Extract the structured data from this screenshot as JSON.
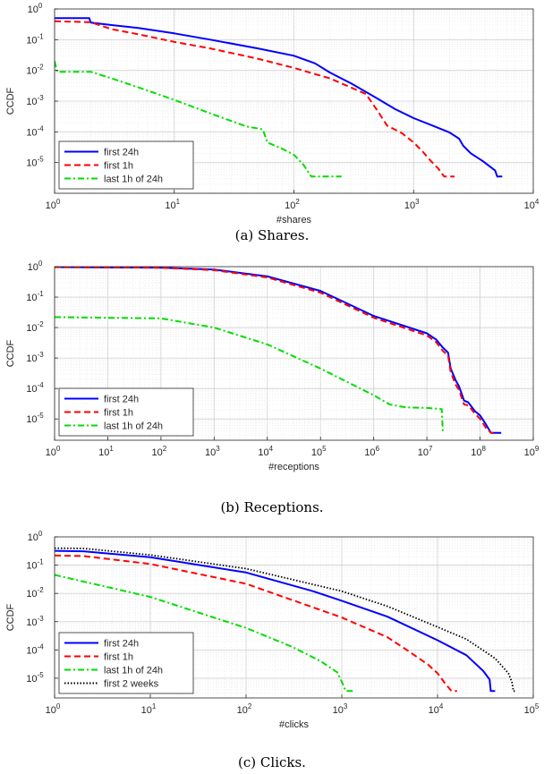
{
  "chart_data": [
    {
      "type": "line",
      "ylabel": "CCDF",
      "xlabel": "#shares",
      "xscale": "log",
      "yscale": "log",
      "xlim": [
        1,
        10000
      ],
      "ylim": [
        1e-06,
        1
      ],
      "xticks": [
        "10^0",
        "10^1",
        "10^2",
        "10^3",
        "10^4"
      ],
      "yticks": [
        "10^0",
        "10^-1",
        "10^-2",
        "10^-3",
        "10^-4",
        "10^-5"
      ],
      "grid": true,
      "legend_position": "bottom-left",
      "caption": "(a) Shares.",
      "series": [
        {
          "name": "first 24h",
          "color": "#0000ff",
          "dash": "solid",
          "points": [
            [
              1,
              0.5
            ],
            [
              1.95,
              0.5
            ],
            [
              2,
              0.36
            ],
            [
              3,
              0.3
            ],
            [
              5,
              0.24
            ],
            [
              10,
              0.16
            ],
            [
              20,
              0.1
            ],
            [
              50,
              0.052
            ],
            [
              100,
              0.03
            ],
            [
              150,
              0.017
            ],
            [
              200,
              0.0085
            ],
            [
              300,
              0.0038
            ],
            [
              500,
              0.0012
            ],
            [
              700,
              0.00055
            ],
            [
              1000,
              0.00028
            ],
            [
              1500,
              0.00015
            ],
            [
              2000,
              9.5e-05
            ],
            [
              2400,
              6e-05
            ],
            [
              2600,
              3.5e-05
            ],
            [
              3000,
              2e-05
            ],
            [
              3800,
              1.1e-05
            ],
            [
              4800,
              5.5e-06
            ],
            [
              5000,
              3.5e-06
            ],
            [
              5500,
              3.5e-06
            ]
          ]
        },
        {
          "name": "first 1h",
          "color": "#ff0000",
          "dash": "dashed",
          "points": [
            [
              1,
              0.4
            ],
            [
              2,
              0.37
            ],
            [
              3,
              0.22
            ],
            [
              5,
              0.15
            ],
            [
              10,
              0.085
            ],
            [
              20,
              0.052
            ],
            [
              50,
              0.024
            ],
            [
              100,
              0.012
            ],
            [
              200,
              0.0055
            ],
            [
              400,
              0.0017
            ],
            [
              500,
              0.00048
            ],
            [
              600,
              0.00016
            ],
            [
              800,
              9e-05
            ],
            [
              1000,
              4.5e-05
            ],
            [
              1200,
              2.2e-05
            ],
            [
              1400,
              1.1e-05
            ],
            [
              1600,
              6.5e-06
            ],
            [
              1800,
              3.5e-06
            ],
            [
              2200,
              3.5e-06
            ]
          ]
        },
        {
          "name": "last 1h of 24h",
          "color": "#00dd00",
          "dash": "dashdot",
          "points": [
            [
              1,
              0.02
            ],
            [
              1.05,
              0.009
            ],
            [
              2,
              0.009
            ],
            [
              3,
              0.0055
            ],
            [
              5,
              0.0028
            ],
            [
              10,
              0.0011
            ],
            [
              20,
              0.0004
            ],
            [
              40,
              0.00015
            ],
            [
              55,
              0.00012
            ],
            [
              60,
              4.5e-05
            ],
            [
              80,
              2.8e-05
            ],
            [
              100,
              1.8e-05
            ],
            [
              120,
              8.5e-06
            ],
            [
              140,
              3.5e-06
            ],
            [
              250,
              3.5e-06
            ]
          ]
        }
      ]
    },
    {
      "type": "line",
      "ylabel": "CCDF",
      "xlabel": "#receptions",
      "xscale": "log",
      "yscale": "log",
      "xlim": [
        1,
        1000000000
      ],
      "ylim": [
        2e-06,
        1
      ],
      "xticks": [
        "10^0",
        "10^1",
        "10^2",
        "10^3",
        "10^4",
        "10^5",
        "10^6",
        "10^7",
        "10^8",
        "10^9"
      ],
      "yticks": [
        "10^0",
        "10^-1",
        "10^-2",
        "10^-3",
        "10^-4",
        "10^-5"
      ],
      "grid": true,
      "legend_position": "bottom-left",
      "caption": "(b) Receptions.",
      "series": [
        {
          "name": "first 24h",
          "color": "#0000ff",
          "dash": "solid",
          "points": [
            [
              1,
              0.97
            ],
            [
              100,
              0.93
            ],
            [
              1000,
              0.8
            ],
            [
              10000,
              0.48
            ],
            [
              100000,
              0.16
            ],
            [
              1000000,
              0.024
            ],
            [
              10000000,
              0.0065
            ],
            [
              15000000,
              0.004
            ],
            [
              20000000,
              0.0022
            ],
            [
              25000000,
              0.0015
            ],
            [
              28000000,
              0.00045
            ],
            [
              35000000,
              0.00018
            ],
            [
              40000000,
              0.00012
            ],
            [
              50000000,
              4e-05
            ],
            [
              60000000,
              3.5e-05
            ],
            [
              80000000,
              1.8e-05
            ],
            [
              100000000,
              1.3e-05
            ],
            [
              130000000,
              6.5e-06
            ],
            [
              160000000,
              3.5e-06
            ],
            [
              250000000,
              3.5e-06
            ]
          ]
        },
        {
          "name": "first 1h",
          "color": "#ff0000",
          "dash": "dashed",
          "points": [
            [
              1,
              0.97
            ],
            [
              100,
              0.92
            ],
            [
              1000,
              0.77
            ],
            [
              10000,
              0.44
            ],
            [
              100000,
              0.14
            ],
            [
              1000000,
              0.021
            ],
            [
              10000000,
              0.0055
            ],
            [
              15000000,
              0.0033
            ],
            [
              20000000,
              0.0017
            ],
            [
              25000000,
              0.0012
            ],
            [
              28000000,
              0.00035
            ],
            [
              35000000,
              0.00013
            ],
            [
              40000000,
              9e-05
            ],
            [
              50000000,
              3e-05
            ],
            [
              60000000,
              2.8e-05
            ],
            [
              80000000,
              1.5e-05
            ],
            [
              100000000,
              1e-05
            ],
            [
              130000000,
              5e-06
            ],
            [
              160000000,
              3.5e-06
            ],
            [
              180000000,
              3.5e-06
            ]
          ]
        },
        {
          "name": "last 1h of 24h",
          "color": "#00dd00",
          "dash": "dashdot",
          "points": [
            [
              1,
              0.022
            ],
            [
              100,
              0.02
            ],
            [
              1000,
              0.01
            ],
            [
              10000,
              0.0028
            ],
            [
              100000,
              0.00045
            ],
            [
              1000000,
              6e-05
            ],
            [
              2000000,
              3e-05
            ],
            [
              4000000,
              2.4e-05
            ],
            [
              10000000,
              2.3e-05
            ],
            [
              19000000,
              2.1e-05
            ],
            [
              20000000,
              3.5e-06
            ]
          ]
        }
      ]
    },
    {
      "type": "line",
      "ylabel": "CCDF",
      "xlabel": "#clicks",
      "xscale": "log",
      "yscale": "log",
      "xlim": [
        1,
        100000
      ],
      "ylim": [
        2e-06,
        1
      ],
      "xticks": [
        "10^0",
        "10^1",
        "10^2",
        "10^3",
        "10^4",
        "10^5"
      ],
      "yticks": [
        "10^0",
        "10^-1",
        "10^-2",
        "10^-3",
        "10^-4",
        "10^-5"
      ],
      "grid": true,
      "legend_position": "bottom-left",
      "caption": "(c) Clicks.",
      "series": [
        {
          "name": "first 24h",
          "color": "#0000ff",
          "dash": "solid",
          "points": [
            [
              1,
              0.32
            ],
            [
              2,
              0.31
            ],
            [
              10,
              0.19
            ],
            [
              100,
              0.055
            ],
            [
              500,
              0.012
            ],
            [
              1000,
              0.0055
            ],
            [
              3000,
              0.0015
            ],
            [
              10000,
              0.00022
            ],
            [
              20000,
              6.5e-05
            ],
            [
              30000,
              1.8e-05
            ],
            [
              35000,
              9e-06
            ],
            [
              36000,
              3.5e-06
            ],
            [
              40000,
              3.5e-06
            ]
          ]
        },
        {
          "name": "first 1h",
          "color": "#ff0000",
          "dash": "dashed",
          "points": [
            [
              1,
              0.22
            ],
            [
              2,
              0.21
            ],
            [
              10,
              0.11
            ],
            [
              100,
              0.022
            ],
            [
              1000,
              0.0014
            ],
            [
              3000,
              0.00028
            ],
            [
              5000,
              9e-05
            ],
            [
              8000,
              3e-05
            ],
            [
              10000,
              1.5e-05
            ],
            [
              12000,
              6.5e-06
            ],
            [
              14000,
              3.5e-06
            ],
            [
              16000,
              3.5e-06
            ]
          ]
        },
        {
          "name": "last 1h of 24h",
          "color": "#00dd00",
          "dash": "dashdot",
          "points": [
            [
              1,
              0.045
            ],
            [
              10,
              0.0075
            ],
            [
              100,
              0.0006
            ],
            [
              300,
              0.00013
            ],
            [
              600,
              4e-05
            ],
            [
              900,
              1.6e-05
            ],
            [
              1000,
              7.5e-06
            ],
            [
              1100,
              3.5e-06
            ],
            [
              1300,
              3.5e-06
            ]
          ]
        },
        {
          "name": "first 2 weeks",
          "color": "#000000",
          "dash": "dotted",
          "points": [
            [
              1,
              0.4
            ],
            [
              2,
              0.39
            ],
            [
              10,
              0.23
            ],
            [
              100,
              0.075
            ],
            [
              1000,
              0.012
            ],
            [
              3000,
              0.0035
            ],
            [
              10000,
              0.00065
            ],
            [
              20000,
              0.00024
            ],
            [
              40000,
              5e-05
            ],
            [
              55000,
              1.5e-05
            ],
            [
              60000,
              7e-06
            ],
            [
              62000,
              3.5e-06
            ],
            [
              65000,
              3.5e-06
            ]
          ]
        }
      ]
    }
  ]
}
